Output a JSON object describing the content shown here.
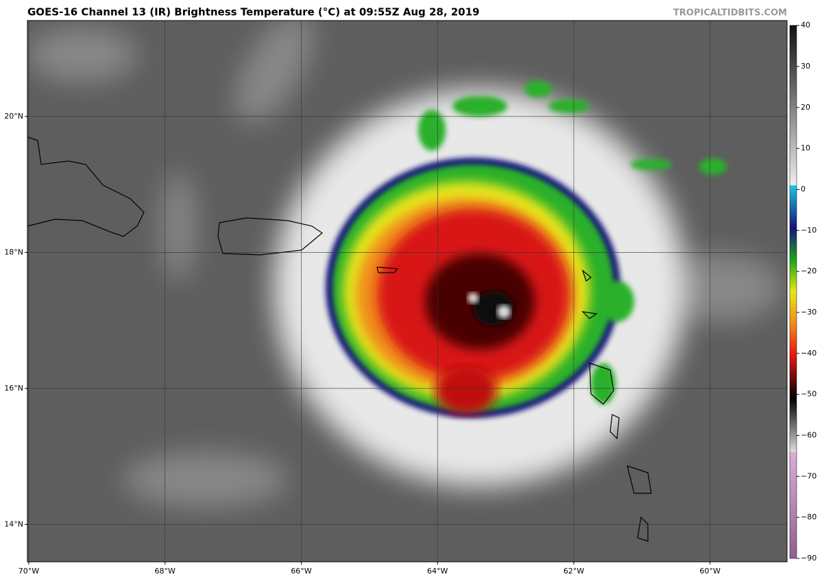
{
  "header": {
    "title": "GOES-16 Channel 13 (IR) Brightness Temperature (°C) at 09:55Z Aug 28, 2019",
    "credit": "TROPICALTIDBITS.COM"
  },
  "map": {
    "lon_range": [
      -70.02,
      -58.87
    ],
    "lat_range": [
      13.45,
      21.41
    ],
    "lon_ticks": [
      {
        "value": -70,
        "label": "70°W"
      },
      {
        "value": -68,
        "label": "68°W"
      },
      {
        "value": -66,
        "label": "66°W"
      },
      {
        "value": -64,
        "label": "64°W"
      },
      {
        "value": -62,
        "label": "62°W"
      },
      {
        "value": -60,
        "label": "60°W"
      }
    ],
    "lat_ticks": [
      {
        "value": 20,
        "label": "20°N"
      },
      {
        "value": 18,
        "label": "18°N"
      },
      {
        "value": 16,
        "label": "16°N"
      },
      {
        "value": 14,
        "label": "14°N"
      }
    ]
  },
  "colorbar": {
    "range": [
      -90.5,
      41.2
    ],
    "ticks": [
      40,
      30,
      20,
      10,
      0,
      {
        "value": -10,
        "label": "−10"
      },
      {
        "value": -20,
        "label": "−20"
      },
      {
        "value": -30,
        "label": "−30"
      },
      {
        "value": -40,
        "label": "−40"
      },
      {
        "value": -50,
        "label": "−50"
      },
      {
        "value": -60,
        "label": "−60"
      },
      {
        "value": -70,
        "label": "−70"
      },
      {
        "value": -80,
        "label": "−80"
      },
      {
        "value": -90,
        "label": "−90"
      }
    ]
  }
}
